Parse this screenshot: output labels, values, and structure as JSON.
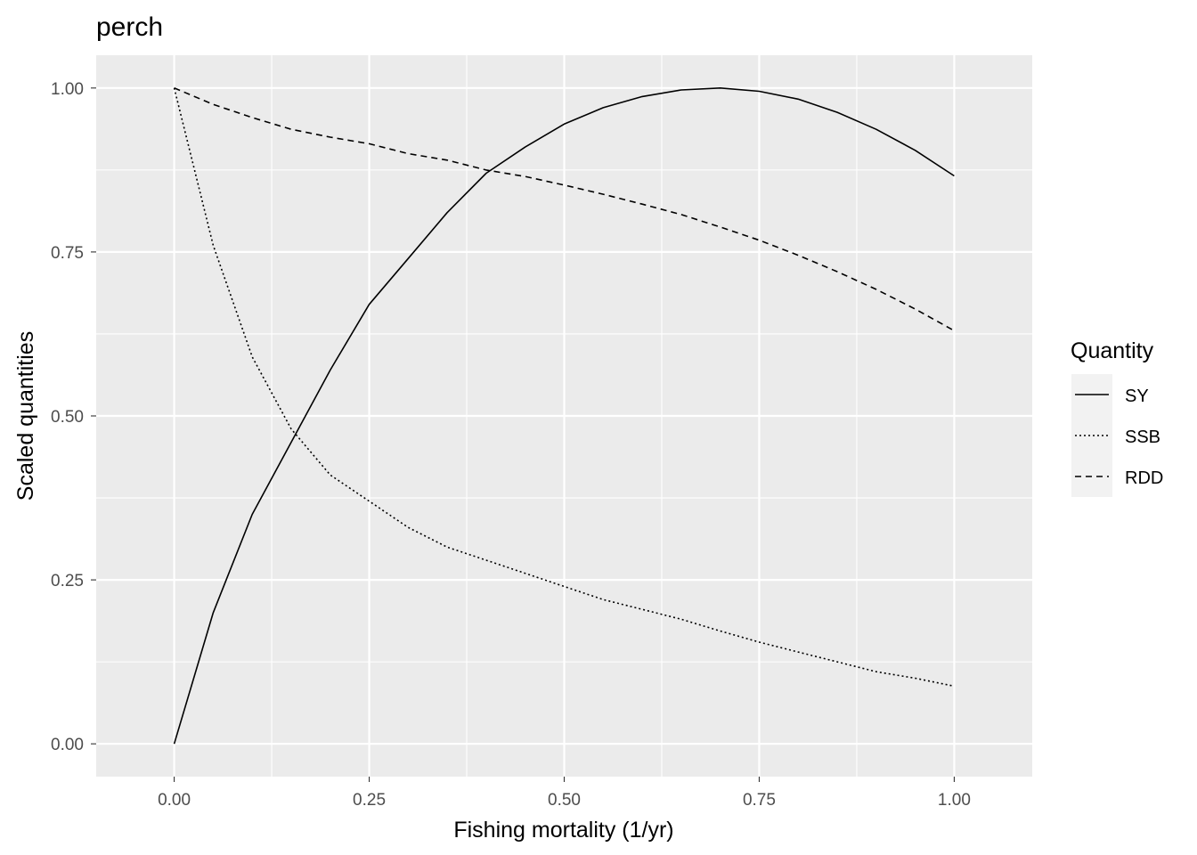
{
  "chart_data": {
    "type": "line",
    "title": "perch",
    "xlabel": "Fishing mortality (1/yr)",
    "ylabel": "Scaled quantities",
    "xlim": [
      -0.1,
      1.1
    ],
    "ylim": [
      -0.05,
      1.05
    ],
    "x_ticks": [
      0.0,
      0.25,
      0.5,
      0.75,
      1.0
    ],
    "x_tick_labels": [
      "0.00",
      "0.25",
      "0.50",
      "0.75",
      "1.00"
    ],
    "y_ticks": [
      0.0,
      0.25,
      0.5,
      0.75,
      1.0
    ],
    "y_tick_labels": [
      "0.00",
      "0.25",
      "0.50",
      "0.75",
      "1.00"
    ],
    "grid": true,
    "panel_background": "#ebebeb",
    "grid_color": "#ffffff",
    "line_color": "#000000",
    "legend": {
      "title": "Quantity",
      "position": "right",
      "background": "#f2f2f2"
    },
    "x": [
      0.0,
      0.05,
      0.1,
      0.15,
      0.2,
      0.25,
      0.3,
      0.35,
      0.4,
      0.45,
      0.5,
      0.55,
      0.6,
      0.65,
      0.7,
      0.75,
      0.8,
      0.85,
      0.9,
      0.95,
      1.0
    ],
    "series": [
      {
        "name": "SY",
        "dash": "solid",
        "values": [
          0.0,
          0.2,
          0.35,
          0.46,
          0.57,
          0.67,
          0.74,
          0.81,
          0.87,
          0.91,
          0.945,
          0.97,
          0.987,
          0.997,
          1.0,
          0.995,
          0.983,
          0.963,
          0.937,
          0.905,
          0.866
        ]
      },
      {
        "name": "SSB",
        "dash": "dotted",
        "values": [
          1.0,
          0.76,
          0.59,
          0.48,
          0.41,
          0.37,
          0.33,
          0.3,
          0.28,
          0.26,
          0.24,
          0.22,
          0.205,
          0.19,
          0.172,
          0.155,
          0.14,
          0.125,
          0.11,
          0.1,
          0.088
        ]
      },
      {
        "name": "RDD",
        "dash": "dashed",
        "values": [
          1.0,
          0.975,
          0.955,
          0.937,
          0.925,
          0.915,
          0.9,
          0.89,
          0.875,
          0.865,
          0.852,
          0.838,
          0.823,
          0.807,
          0.788,
          0.768,
          0.745,
          0.72,
          0.693,
          0.663,
          0.63
        ]
      }
    ]
  }
}
